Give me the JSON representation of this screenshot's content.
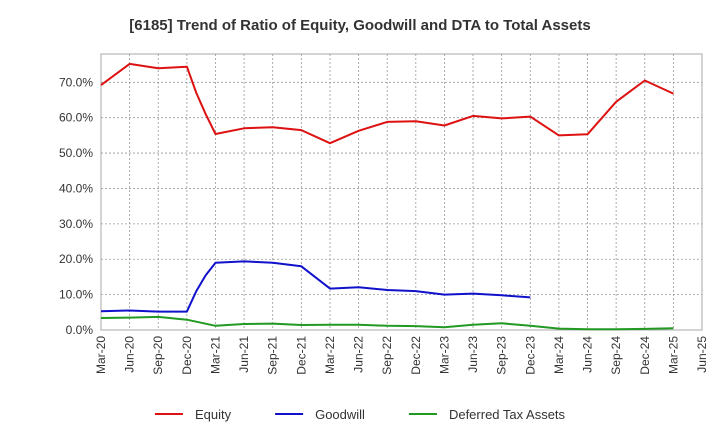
{
  "chart_data": {
    "type": "line",
    "title": "[6185]  Trend of Ratio of Equity, Goodwill and DTA to Total Assets",
    "xlabel": "",
    "ylabel": "",
    "categories": [
      "Mar-20",
      "Jun-20",
      "Sep-20",
      "Dec-20",
      "Mar-21",
      "Jun-21",
      "Sep-21",
      "Dec-21",
      "Mar-22",
      "Jun-22",
      "Sep-22",
      "Dec-22",
      "Mar-23",
      "Jun-23",
      "Sep-23",
      "Dec-23",
      "Mar-24",
      "Jun-24",
      "Sep-24",
      "Dec-24",
      "Mar-25",
      "Jun-25"
    ],
    "ylim": [
      0,
      78
    ],
    "yticks": [
      0,
      10,
      20,
      30,
      40,
      50,
      60,
      70
    ],
    "ytick_labels": [
      "0.0%",
      "10.0%",
      "20.0%",
      "30.0%",
      "40.0%",
      "50.0%",
      "60.0%",
      "70.0%"
    ],
    "grid": true,
    "legend_position": "bottom",
    "series": [
      {
        "name": "Equity",
        "color": "#dd1111",
        "points": [
          {
            "x": 0,
            "y": 69.2
          },
          {
            "x": 1,
            "y": 75.2
          },
          {
            "x": 2,
            "y": 74.0
          },
          {
            "x": 3,
            "y": 74.4
          },
          {
            "x": 3.33,
            "y": 67.0
          },
          {
            "x": 3.66,
            "y": 61.0
          },
          {
            "x": 4,
            "y": 55.4
          },
          {
            "x": 5,
            "y": 57.0
          },
          {
            "x": 6,
            "y": 57.3
          },
          {
            "x": 7,
            "y": 56.5
          },
          {
            "x": 8,
            "y": 52.8
          },
          {
            "x": 9,
            "y": 56.3
          },
          {
            "x": 10,
            "y": 58.8
          },
          {
            "x": 11,
            "y": 59.0
          },
          {
            "x": 12,
            "y": 57.8
          },
          {
            "x": 13,
            "y": 60.5
          },
          {
            "x": 14,
            "y": 59.8
          },
          {
            "x": 15,
            "y": 60.3
          },
          {
            "x": 16,
            "y": 55.0
          },
          {
            "x": 17,
            "y": 55.3
          },
          {
            "x": 18,
            "y": 64.5
          },
          {
            "x": 19,
            "y": 70.5
          },
          {
            "x": 20,
            "y": 66.8
          }
        ]
      },
      {
        "name": "Goodwill",
        "color": "#1111cc",
        "points": [
          {
            "x": 0,
            "y": 5.3
          },
          {
            "x": 1,
            "y": 5.5
          },
          {
            "x": 2,
            "y": 5.2
          },
          {
            "x": 3,
            "y": 5.2
          },
          {
            "x": 3.33,
            "y": 11.0
          },
          {
            "x": 3.66,
            "y": 15.5
          },
          {
            "x": 4,
            "y": 19.0
          },
          {
            "x": 5,
            "y": 19.4
          },
          {
            "x": 6,
            "y": 19.0
          },
          {
            "x": 7,
            "y": 18.0
          },
          {
            "x": 8,
            "y": 11.7
          },
          {
            "x": 9,
            "y": 12.1
          },
          {
            "x": 10,
            "y": 11.3
          },
          {
            "x": 11,
            "y": 11.0
          },
          {
            "x": 12,
            "y": 10.0
          },
          {
            "x": 13,
            "y": 10.3
          },
          {
            "x": 14,
            "y": 9.8
          },
          {
            "x": 15,
            "y": 9.2
          }
        ]
      },
      {
        "name": "Deferred Tax Assets",
        "color": "#229922",
        "points": [
          {
            "x": 0,
            "y": 3.4
          },
          {
            "x": 1,
            "y": 3.5
          },
          {
            "x": 2,
            "y": 3.7
          },
          {
            "x": 3,
            "y": 2.9
          },
          {
            "x": 4,
            "y": 1.2
          },
          {
            "x": 5,
            "y": 1.7
          },
          {
            "x": 6,
            "y": 1.8
          },
          {
            "x": 7,
            "y": 1.4
          },
          {
            "x": 8,
            "y": 1.5
          },
          {
            "x": 9,
            "y": 1.5
          },
          {
            "x": 10,
            "y": 1.2
          },
          {
            "x": 11,
            "y": 1.1
          },
          {
            "x": 12,
            "y": 0.8
          },
          {
            "x": 13,
            "y": 1.5
          },
          {
            "x": 14,
            "y": 1.9
          },
          {
            "x": 15,
            "y": 1.2
          },
          {
            "x": 16,
            "y": 0.4
          },
          {
            "x": 17,
            "y": 0.2
          },
          {
            "x": 18,
            "y": 0.2
          },
          {
            "x": 19,
            "y": 0.3
          },
          {
            "x": 20,
            "y": 0.5
          }
        ]
      }
    ]
  }
}
